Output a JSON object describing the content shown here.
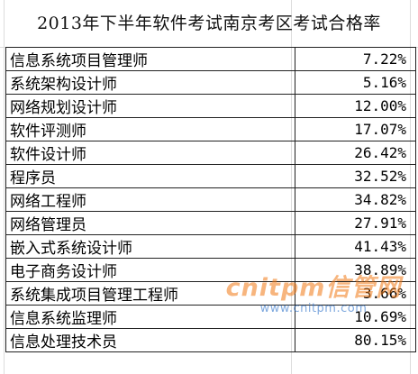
{
  "title": "2013年下半年软件考试南京考区考试合格率",
  "rows": [
    {
      "name": "信息系统项目管理师",
      "rate": "7.22%"
    },
    {
      "name": "系统架构设计师",
      "rate": "5.16%"
    },
    {
      "name": "网络规划设计师",
      "rate": "12.00%"
    },
    {
      "name": "软件评测师",
      "rate": "17.07%"
    },
    {
      "name": "软件设计师",
      "rate": "26.42%"
    },
    {
      "name": "程序员",
      "rate": "32.52%"
    },
    {
      "name": "网络工程师",
      "rate": "34.82%"
    },
    {
      "name": "网络管理员",
      "rate": "27.91%"
    },
    {
      "name": "嵌入式系统设计师",
      "rate": "41.43%"
    },
    {
      "name": "电子商务设计师",
      "rate": "38.89%"
    },
    {
      "name": "系统集成项目管理工程师",
      "rate": "3.66%"
    },
    {
      "name": "信息系统监理师",
      "rate": "10.69%"
    },
    {
      "name": "信息处理技术员",
      "rate": "80.15%"
    }
  ],
  "watermark": {
    "brand": "cnitpm信管网",
    "url": "www.cnitpm.com"
  }
}
